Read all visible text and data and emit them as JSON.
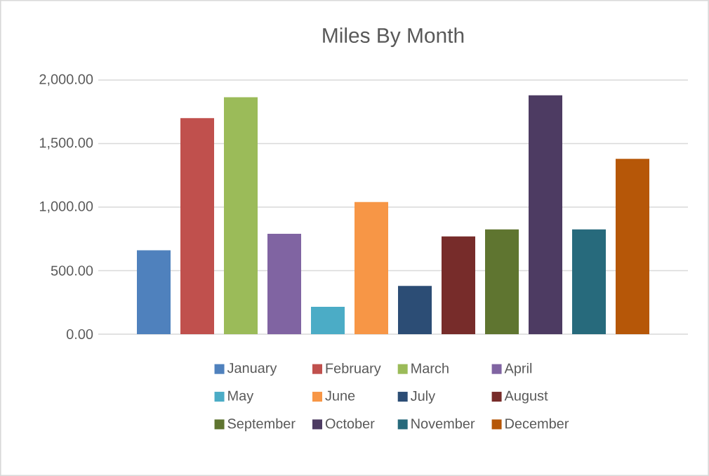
{
  "chart_data": {
    "type": "bar",
    "title": "Miles By Month",
    "categories": [
      null
    ],
    "series": [
      {
        "name": "January",
        "color": "#4f81bd",
        "values": [
          660
        ]
      },
      {
        "name": "February",
        "color": "#c0504d",
        "values": [
          1700
        ]
      },
      {
        "name": "March",
        "color": "#9bbb59",
        "values": [
          1865
        ]
      },
      {
        "name": "April",
        "color": "#8064a2",
        "values": [
          790
        ]
      },
      {
        "name": "May",
        "color": "#4bacc6",
        "values": [
          215
        ]
      },
      {
        "name": "June",
        "color": "#f79646",
        "values": [
          1040
        ]
      },
      {
        "name": "July",
        "color": "#2c4d75",
        "values": [
          380
        ]
      },
      {
        "name": "August",
        "color": "#772c2a",
        "values": [
          770
        ]
      },
      {
        "name": "September",
        "color": "#5f7530",
        "values": [
          825
        ]
      },
      {
        "name": "October",
        "color": "#4d3b62",
        "values": [
          1880
        ]
      },
      {
        "name": "November",
        "color": "#276a7c",
        "values": [
          825
        ]
      },
      {
        "name": "December",
        "color": "#b65708",
        "values": [
          1380
        ]
      }
    ],
    "ylim": [
      0,
      2000
    ],
    "yticks": [
      {
        "value": 0,
        "label": "0.00"
      },
      {
        "value": 500,
        "label": "500.00"
      },
      {
        "value": 1000,
        "label": "1,000.00"
      },
      {
        "value": 1500,
        "label": "1,500.00"
      },
      {
        "value": 2000,
        "label": "2,000.00"
      }
    ],
    "grid": "y",
    "legend": "bottom"
  }
}
